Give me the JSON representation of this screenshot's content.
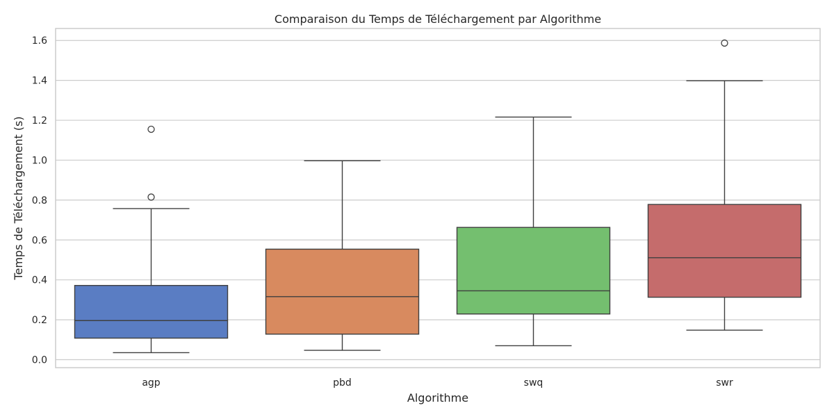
{
  "chart_data": {
    "type": "box",
    "title": "Comparaison du Temps de Téléchargement par Algorithme",
    "xlabel": "Algorithme",
    "ylabel": "Temps de Téléchargement (s)",
    "ylim": [
      -0.04,
      1.66
    ],
    "yticks": [
      0.0,
      0.2,
      0.4,
      0.6,
      0.8,
      1.0,
      1.2,
      1.4,
      1.6
    ],
    "ytick_labels": [
      "0.0",
      "0.2",
      "0.4",
      "0.6",
      "0.8",
      "1.0",
      "1.2",
      "1.4",
      "1.6"
    ],
    "grid": true,
    "categories": [
      "agp",
      "pbd",
      "swq",
      "swr"
    ],
    "boxes": [
      {
        "category": "agp",
        "whisker_low": 0.035,
        "q1": 0.108,
        "median": 0.196,
        "q3": 0.372,
        "whisker_high": 0.757,
        "outliers": [
          0.815,
          1.155
        ],
        "color": "#5a7dc3"
      },
      {
        "category": "pbd",
        "whisker_low": 0.047,
        "q1": 0.128,
        "median": 0.316,
        "q3": 0.554,
        "whisker_high": 0.997,
        "outliers": [],
        "color": "#d88a5f"
      },
      {
        "category": "swq",
        "whisker_low": 0.07,
        "q1": 0.229,
        "median": 0.345,
        "q3": 0.663,
        "whisker_high": 1.216,
        "outliers": [],
        "color": "#74bf6f"
      },
      {
        "category": "swr",
        "whisker_low": 0.148,
        "q1": 0.313,
        "median": 0.511,
        "q3": 0.778,
        "whisker_high": 1.398,
        "outliers": [
          1.587
        ],
        "color": "#c56c6c"
      }
    ]
  }
}
